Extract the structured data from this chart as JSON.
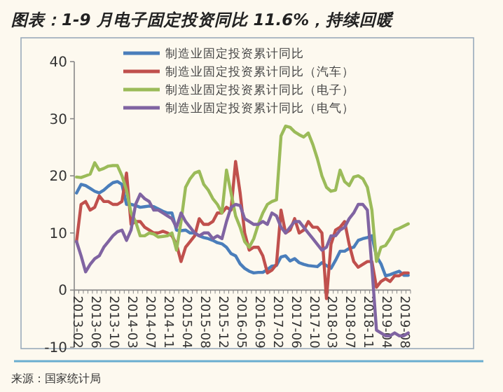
{
  "chart_data": {
    "type": "line",
    "title": "图表：1-9 月电子固定投资同比 11.6%，持续回暖",
    "annotations": [
      "来源：国家统计局"
    ],
    "categories": [
      "2013-02",
      null,
      null,
      null,
      "2013-06",
      null,
      null,
      null,
      "2013-10",
      null,
      null,
      null,
      "2014-03",
      null,
      null,
      null,
      "2014-07",
      null,
      null,
      null,
      "2014-11",
      null,
      null,
      null,
      "2015-04",
      null,
      null,
      null,
      "2015-08",
      null,
      null,
      null,
      "2015-12",
      null,
      null,
      null,
      "2016-05",
      null,
      null,
      null,
      "2016-09",
      null,
      null,
      null,
      "2017-02",
      null,
      null,
      null,
      "2017-06",
      null,
      null,
      null,
      "2017-10",
      null,
      null,
      null,
      "2018-03",
      null,
      null,
      null,
      "2018-07",
      null,
      null,
      null,
      "2018-11",
      null,
      null,
      null,
      "2019-04",
      null,
      null,
      null,
      "2019-08",
      null
    ],
    "series": [
      {
        "name": "制造业固定投资累计同比",
        "color": "#4a7ebb",
        "values": [
          17,
          18.5,
          18.3,
          17.8,
          17.3,
          17,
          17.5,
          18.2,
          18.8,
          19,
          18.5,
          15,
          15,
          14.8,
          14.5,
          14.6,
          14.7,
          14.6,
          14.2,
          13.8,
          13.5,
          13.5,
          10.5,
          10.4,
          10.5,
          10,
          10,
          9.5,
          9.2,
          9,
          8.7,
          8.3,
          8.1,
          7.5,
          6.4,
          6,
          4.6,
          3.8,
          3.3,
          3,
          3.1,
          3.1,
          3.6,
          4.2,
          4.3,
          5.8,
          6,
          5.1,
          5.5,
          4.8,
          4.5,
          4.3,
          4.2,
          4.1,
          4.8,
          4.3,
          3.8,
          5.2,
          6.8,
          6.8,
          7.3,
          7.5,
          8.7,
          9,
          9.2,
          9.5,
          5.9,
          4.6,
          2.5,
          2.7,
          3,
          3.3,
          2.6,
          2.6
        ]
      },
      {
        "name": "制造业固定投资累计同比（汽车）",
        "color": "#c0504d",
        "values": [
          8.5,
          15,
          15.5,
          14,
          14.5,
          16.5,
          15.5,
          15.5,
          15,
          15,
          15.5,
          20.5,
          11.5,
          12,
          12,
          11,
          10.5,
          10,
          10,
          10.3,
          10,
          9.5,
          8,
          5,
          7.5,
          8.5,
          9.5,
          12.5,
          11.5,
          11.5,
          12,
          13.5,
          13.5,
          14.5,
          14,
          22.5,
          17,
          10,
          7,
          7.5,
          7.5,
          6,
          3,
          3.5,
          4.5,
          14,
          10,
          10.5,
          12.5,
          10,
          10.5,
          12,
          11,
          11,
          10,
          -1.5,
          8,
          10.5,
          11,
          12,
          8,
          5,
          4,
          4.5,
          5,
          5,
          0.5,
          1.5,
          2,
          1.5,
          2.5,
          2.5,
          3,
          3
        ]
      },
      {
        "name": "制造业固定投资累计同比（电子）",
        "color": "#9bbb59",
        "values": [
          19.8,
          19.7,
          20,
          20.3,
          22.3,
          21,
          21.3,
          21.7,
          21.8,
          21.8,
          20,
          17.5,
          13.5,
          12,
          9.5,
          9.5,
          10,
          9.8,
          9.3,
          9.4,
          9.5,
          10,
          7,
          12,
          18,
          19.5,
          20.5,
          20.8,
          18.5,
          17.5,
          16,
          15,
          13.5,
          21,
          17,
          13,
          11,
          8.5,
          7.5,
          9,
          11.5,
          13.5,
          15,
          15.5,
          15.8,
          27,
          28.7,
          28.5,
          27.7,
          27.2,
          26.8,
          27.5,
          25.5,
          23,
          20,
          18,
          17.3,
          17.5,
          21,
          19,
          18.3,
          19.8,
          20,
          19.5,
          18,
          14,
          5,
          7.5,
          7.8,
          9,
          10.5,
          10.8,
          11.2,
          11.6
        ]
      },
      {
        "name": "制造业固定投资累计同比（电气）",
        "color": "#8064a2",
        "values": [
          8.5,
          6,
          3.2,
          4.5,
          5.5,
          6,
          7.5,
          8.5,
          9.5,
          10.2,
          10.5,
          8.7,
          10.5,
          15,
          16.8,
          16,
          15.5,
          14,
          14,
          13.5,
          13,
          12.5,
          11,
          13.5,
          12,
          11,
          10,
          9.5,
          10,
          10,
          9,
          9.5,
          9,
          12,
          14.5,
          15,
          14.8,
          12.5,
          12,
          11.5,
          11.5,
          12,
          11.5,
          13.5,
          13,
          11,
          10,
          11,
          12,
          12,
          11,
          10,
          9,
          8,
          7,
          7.5,
          9.5,
          9.5,
          10.5,
          11,
          12.5,
          13.5,
          15,
          15,
          14,
          4,
          -7,
          -7.5,
          -8,
          -8,
          -7.5,
          -8,
          -8,
          -7.5
        ]
      }
    ],
    "ylim": [
      -10,
      40
    ],
    "yticks": [
      -10,
      0,
      10,
      20,
      30,
      40
    ],
    "legend": "top"
  }
}
